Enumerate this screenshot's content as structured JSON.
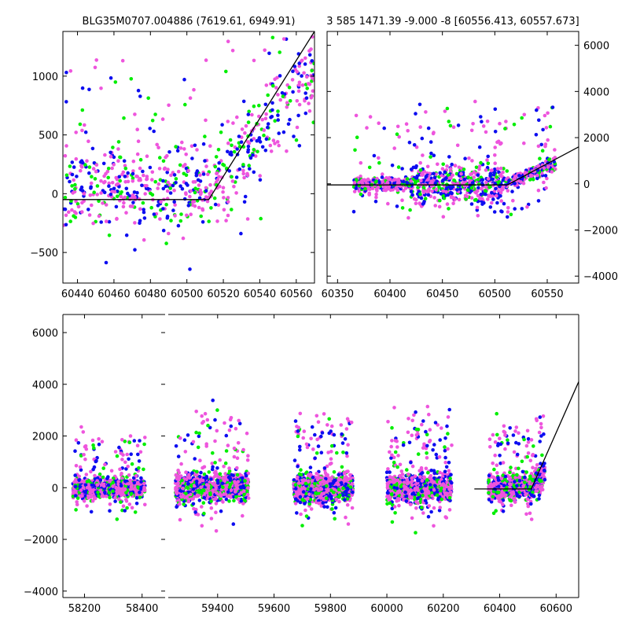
{
  "colors": {
    "background": "#ffffff",
    "axes": "#000000",
    "model_line": "#000000",
    "series": [
      "#0d0df0",
      "#00ee00",
      "#ee55dd"
    ]
  },
  "chart_data": [
    {
      "id": "panel-top-left",
      "type": "scatter",
      "title": "BLG35M0707.004886 (7619.61, 6949.91)",
      "xlabel": "",
      "ylabel": "",
      "xlim": [
        60432,
        60570
      ],
      "ylim": [
        -760,
        1380
      ],
      "xticks": [
        60440,
        60460,
        60480,
        60500,
        60520,
        60540,
        60560
      ],
      "yticks": [
        -500,
        0,
        500,
        1000
      ],
      "ytick_side": "left",
      "grid": false,
      "legend": "none",
      "series_style": "dense scatter of three colored point groups",
      "model_line": [
        [
          60432,
          -50
        ],
        [
          60512,
          -50
        ],
        [
          60570,
          1380
        ]
      ]
    },
    {
      "id": "panel-top-right",
      "type": "scatter",
      "title": "3 585 1471.39 -9.000 -8 [60556.413, 60557.673]",
      "xlabel": "",
      "ylabel": "",
      "xlim": [
        60340,
        60580
      ],
      "ylim": [
        -4300,
        6600
      ],
      "xticks": [
        60350,
        60400,
        60450,
        60500,
        60550
      ],
      "yticks": [
        -4000,
        -2000,
        0,
        2000,
        4000,
        6000
      ],
      "ytick_side": "right",
      "grid": false,
      "legend": "none",
      "series_style": "dense scatter of three colored point groups",
      "model_line": [
        [
          60340,
          -50
        ],
        [
          60512,
          -50
        ],
        [
          60580,
          1600
        ]
      ]
    },
    {
      "id": "panel-bottom",
      "type": "scatter",
      "title": "",
      "xlabel": "",
      "ylabel": "",
      "segments": [
        {
          "xlim": [
            58125,
            58480
          ],
          "xticks": [
            58200,
            58400
          ]
        },
        {
          "xlim": [
            59225,
            60680
          ],
          "xticks": [
            59400,
            59600,
            59800,
            60000,
            60200,
            60400,
            60600
          ]
        }
      ],
      "ylim": [
        -4250,
        6700
      ],
      "yticks": [
        -4000,
        -2000,
        0,
        2000,
        4000,
        6000
      ],
      "ytick_side": "left",
      "grid": false,
      "legend": "none",
      "series_style": "dense scatter of three colored point groups in seasonal clusters",
      "seasons": [
        {
          "x": [
            58160,
            58410
          ],
          "spread": 900
        },
        {
          "x": [
            59250,
            59510
          ],
          "spread": 1300
        },
        {
          "x": [
            59670,
            59880
          ],
          "spread": 1200
        },
        {
          "x": [
            60000,
            60230
          ],
          "spread": 1300
        },
        {
          "x": [
            60360,
            60560
          ],
          "spread": 1100
        }
      ],
      "model_line": [
        [
          60310,
          -50
        ],
        [
          60512,
          -50
        ],
        [
          60680,
          4100
        ]
      ]
    }
  ]
}
